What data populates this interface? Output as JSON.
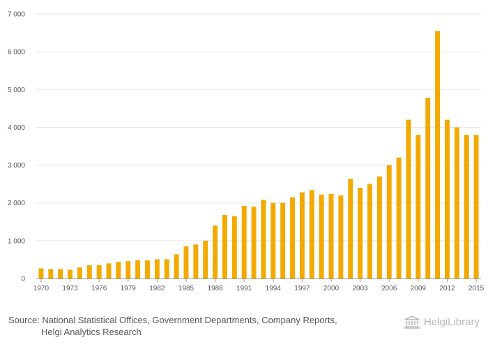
{
  "chart_data": {
    "type": "bar",
    "title": "",
    "xlabel": "",
    "ylabel": "",
    "ylim": [
      0,
      7000
    ],
    "yticks": [
      0,
      1000,
      2000,
      3000,
      4000,
      5000,
      6000,
      7000
    ],
    "ytick_labels": [
      "0",
      "1 000",
      "2 000",
      "3 000",
      "4 000",
      "5 000",
      "6 000",
      "7 000"
    ],
    "categories": [
      "1970",
      "1971",
      "1972",
      "1973",
      "1974",
      "1975",
      "1976",
      "1977",
      "1978",
      "1979",
      "1980",
      "1981",
      "1982",
      "1983",
      "1984",
      "1985",
      "1986",
      "1987",
      "1988",
      "1989",
      "1990",
      "1991",
      "1992",
      "1993",
      "1994",
      "1995",
      "1996",
      "1997",
      "1998",
      "1999",
      "2000",
      "2001",
      "2002",
      "2003",
      "2004",
      "2005",
      "2006",
      "2007",
      "2008",
      "2009",
      "2010",
      "2011",
      "2012",
      "2013",
      "2014",
      "2015"
    ],
    "xtick_labels": [
      "1970",
      "1973",
      "1976",
      "1979",
      "1982",
      "1985",
      "1988",
      "1991",
      "1994",
      "1997",
      "2000",
      "2003",
      "2006",
      "2009",
      "2012",
      "2015"
    ],
    "values": [
      270,
      250,
      250,
      230,
      290,
      350,
      350,
      400,
      440,
      460,
      480,
      480,
      510,
      510,
      640,
      850,
      900,
      1000,
      1400,
      1680,
      1650,
      1920,
      1900,
      2080,
      2000,
      2000,
      2150,
      2280,
      2340,
      2220,
      2240,
      2200,
      2640,
      2400,
      2500,
      2700,
      3000,
      3200,
      4200,
      3800,
      4780,
      6550,
      4200,
      4000,
      3800,
      3800
    ],
    "bar_color": "#f2a900",
    "grid": true
  },
  "footer": {
    "source_line1": "Source: National Statistical Offices, Government Departments, Company Reports,",
    "source_line2": "Helgi Analytics Research",
    "logo_text": "HelgiLibrary"
  }
}
